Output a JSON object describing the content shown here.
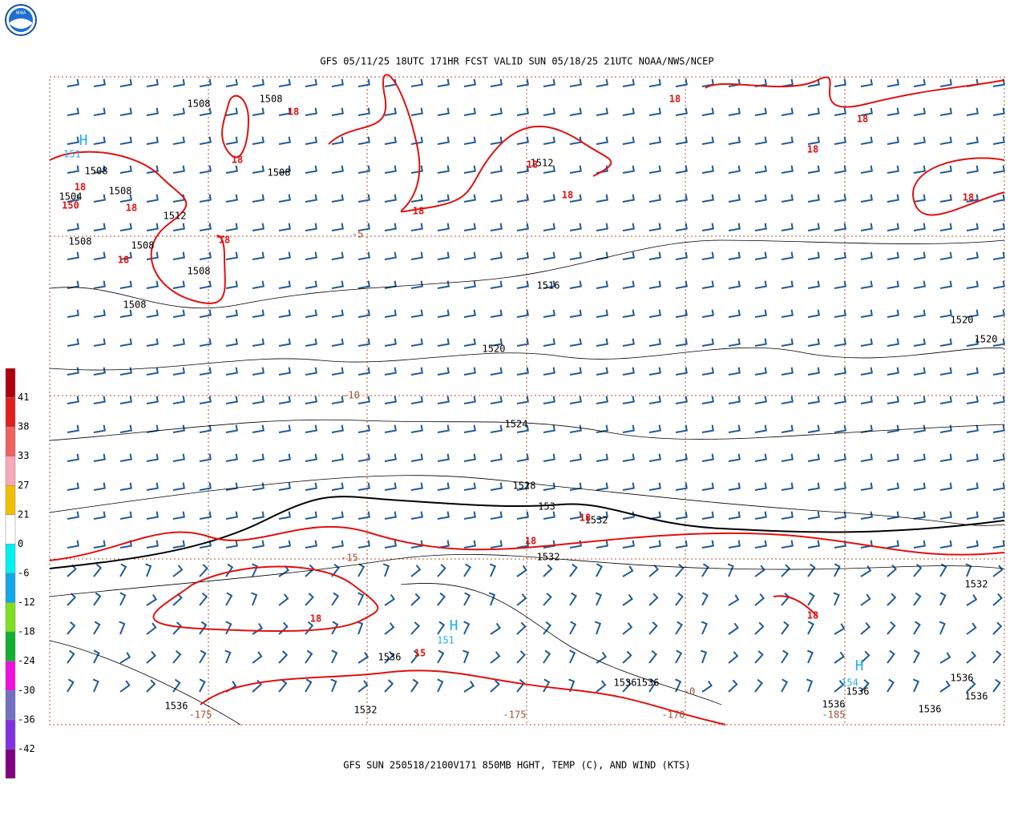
{
  "header": {
    "title": "GFS 05/11/25 18UTC 171HR FCST VALID SUN 05/18/25 21UTC NOAA/NWS/NCEP",
    "logo": "NOAA"
  },
  "footer": {
    "caption": "GFS SUN 250518/2100V171 850MB HGHT, TEMP (C), AND WIND (KTS)"
  },
  "colorbar": {
    "labels": [
      "41",
      "38",
      "33",
      "27",
      "21",
      "0",
      "-6",
      "-12",
      "-18",
      "-24",
      "-30",
      "-36",
      "-42"
    ]
  },
  "height_labels": [
    "1508",
    "1508",
    "1508",
    "1508",
    "1508",
    "1508",
    "1508",
    "1508",
    "1508",
    "1504",
    "1512",
    "1512",
    "1516",
    "1520",
    "1520",
    "1520",
    "1524",
    "1528",
    "153",
    "1532",
    "1532",
    "1532",
    "1532",
    "1536",
    "1536",
    "1536",
    "1536",
    "1536",
    "1536",
    "1536",
    "1536",
    "1536"
  ],
  "temp_labels": [
    "18",
    "18",
    "18",
    "18",
    "18",
    "18",
    "18",
    "18",
    "18",
    "18",
    "18",
    "18",
    "18",
    "18",
    "18",
    "150",
    "15",
    "18",
    "18"
  ],
  "cold_labels": [
    "-5",
    "-10",
    "-15",
    "-175",
    "-175",
    "-170",
    "-185",
    "-0"
  ],
  "highs": [
    {
      "symbol": "H",
      "value": "151"
    },
    {
      "symbol": "H",
      "value": "151"
    },
    {
      "symbol": "H",
      "value": "154"
    }
  ]
}
